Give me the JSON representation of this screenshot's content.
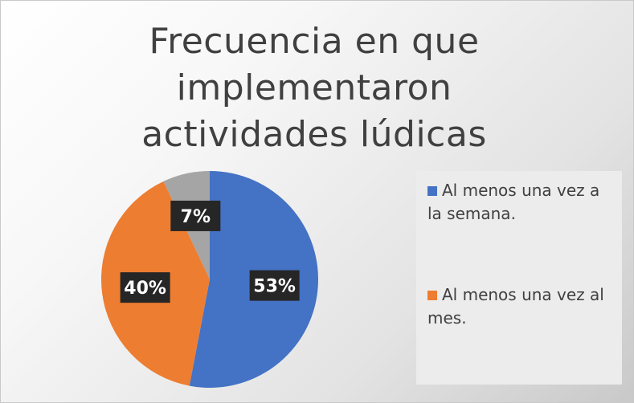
{
  "chart_data": {
    "type": "pie",
    "title": "Frecuencia en que implementaron  actividades lúdicas",
    "slices": [
      {
        "label": "Al menos una vez a la semana.",
        "value": 53,
        "display": "53%",
        "color": "#4472c4"
      },
      {
        "label": "Al menos una vez al mes.",
        "value": 40,
        "display": "40%",
        "color": "#ed7d31"
      },
      {
        "label": "",
        "value": 7,
        "display": "7%",
        "color": "#a5a5a5"
      }
    ],
    "legend": [
      {
        "label": "Al menos una vez a la semana.",
        "color": "#4472c4"
      },
      {
        "label": "Al menos una vez al mes.",
        "color": "#ed7d31"
      }
    ],
    "legend_position": "right"
  }
}
